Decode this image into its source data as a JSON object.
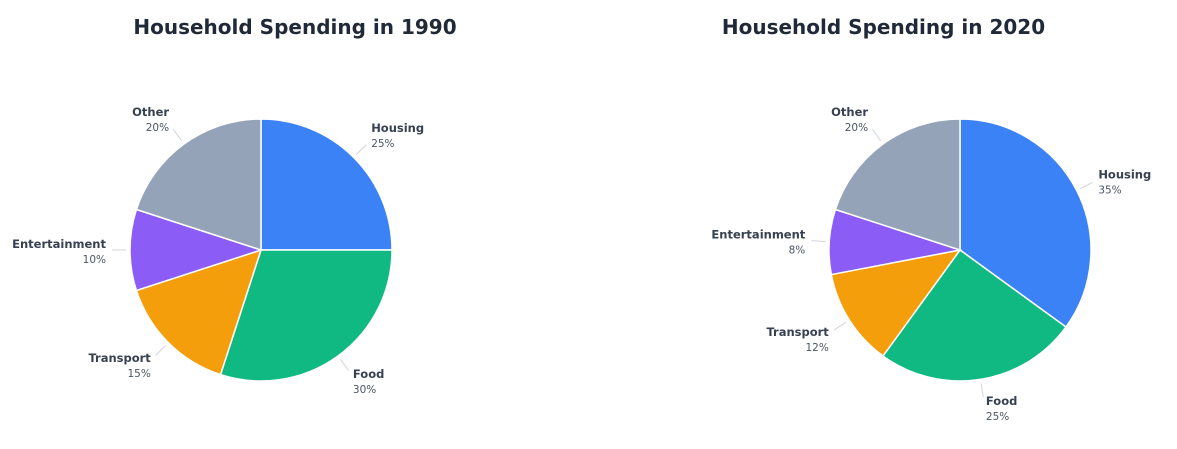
{
  "chart_data": [
    {
      "type": "pie",
      "title": "Household Spending in 1990",
      "slices": [
        {
          "label": "Housing",
          "value": 25,
          "value_label": "25%",
          "color": "#3b82f6"
        },
        {
          "label": "Food",
          "value": 30,
          "value_label": "30%",
          "color": "#10b981"
        },
        {
          "label": "Transport",
          "value": 15,
          "value_label": "15%",
          "color": "#f59e0b"
        },
        {
          "label": "Entertainment",
          "value": 10,
          "value_label": "10%",
          "color": "#8b5cf6"
        },
        {
          "label": "Other",
          "value": 20,
          "value_label": "20%",
          "color": "#94a3b8"
        }
      ]
    },
    {
      "type": "pie",
      "title": "Household Spending in 2020",
      "slices": [
        {
          "label": "Housing",
          "value": 35,
          "value_label": "35%",
          "color": "#3b82f6"
        },
        {
          "label": "Food",
          "value": 25,
          "value_label": "25%",
          "color": "#10b981"
        },
        {
          "label": "Transport",
          "value": 12,
          "value_label": "12%",
          "color": "#f59e0b"
        },
        {
          "label": "Entertainment",
          "value": 8,
          "value_label": "8%",
          "color": "#8b5cf6"
        },
        {
          "label": "Other",
          "value": 20,
          "value_label": "20%",
          "color": "#94a3b8"
        }
      ]
    }
  ]
}
